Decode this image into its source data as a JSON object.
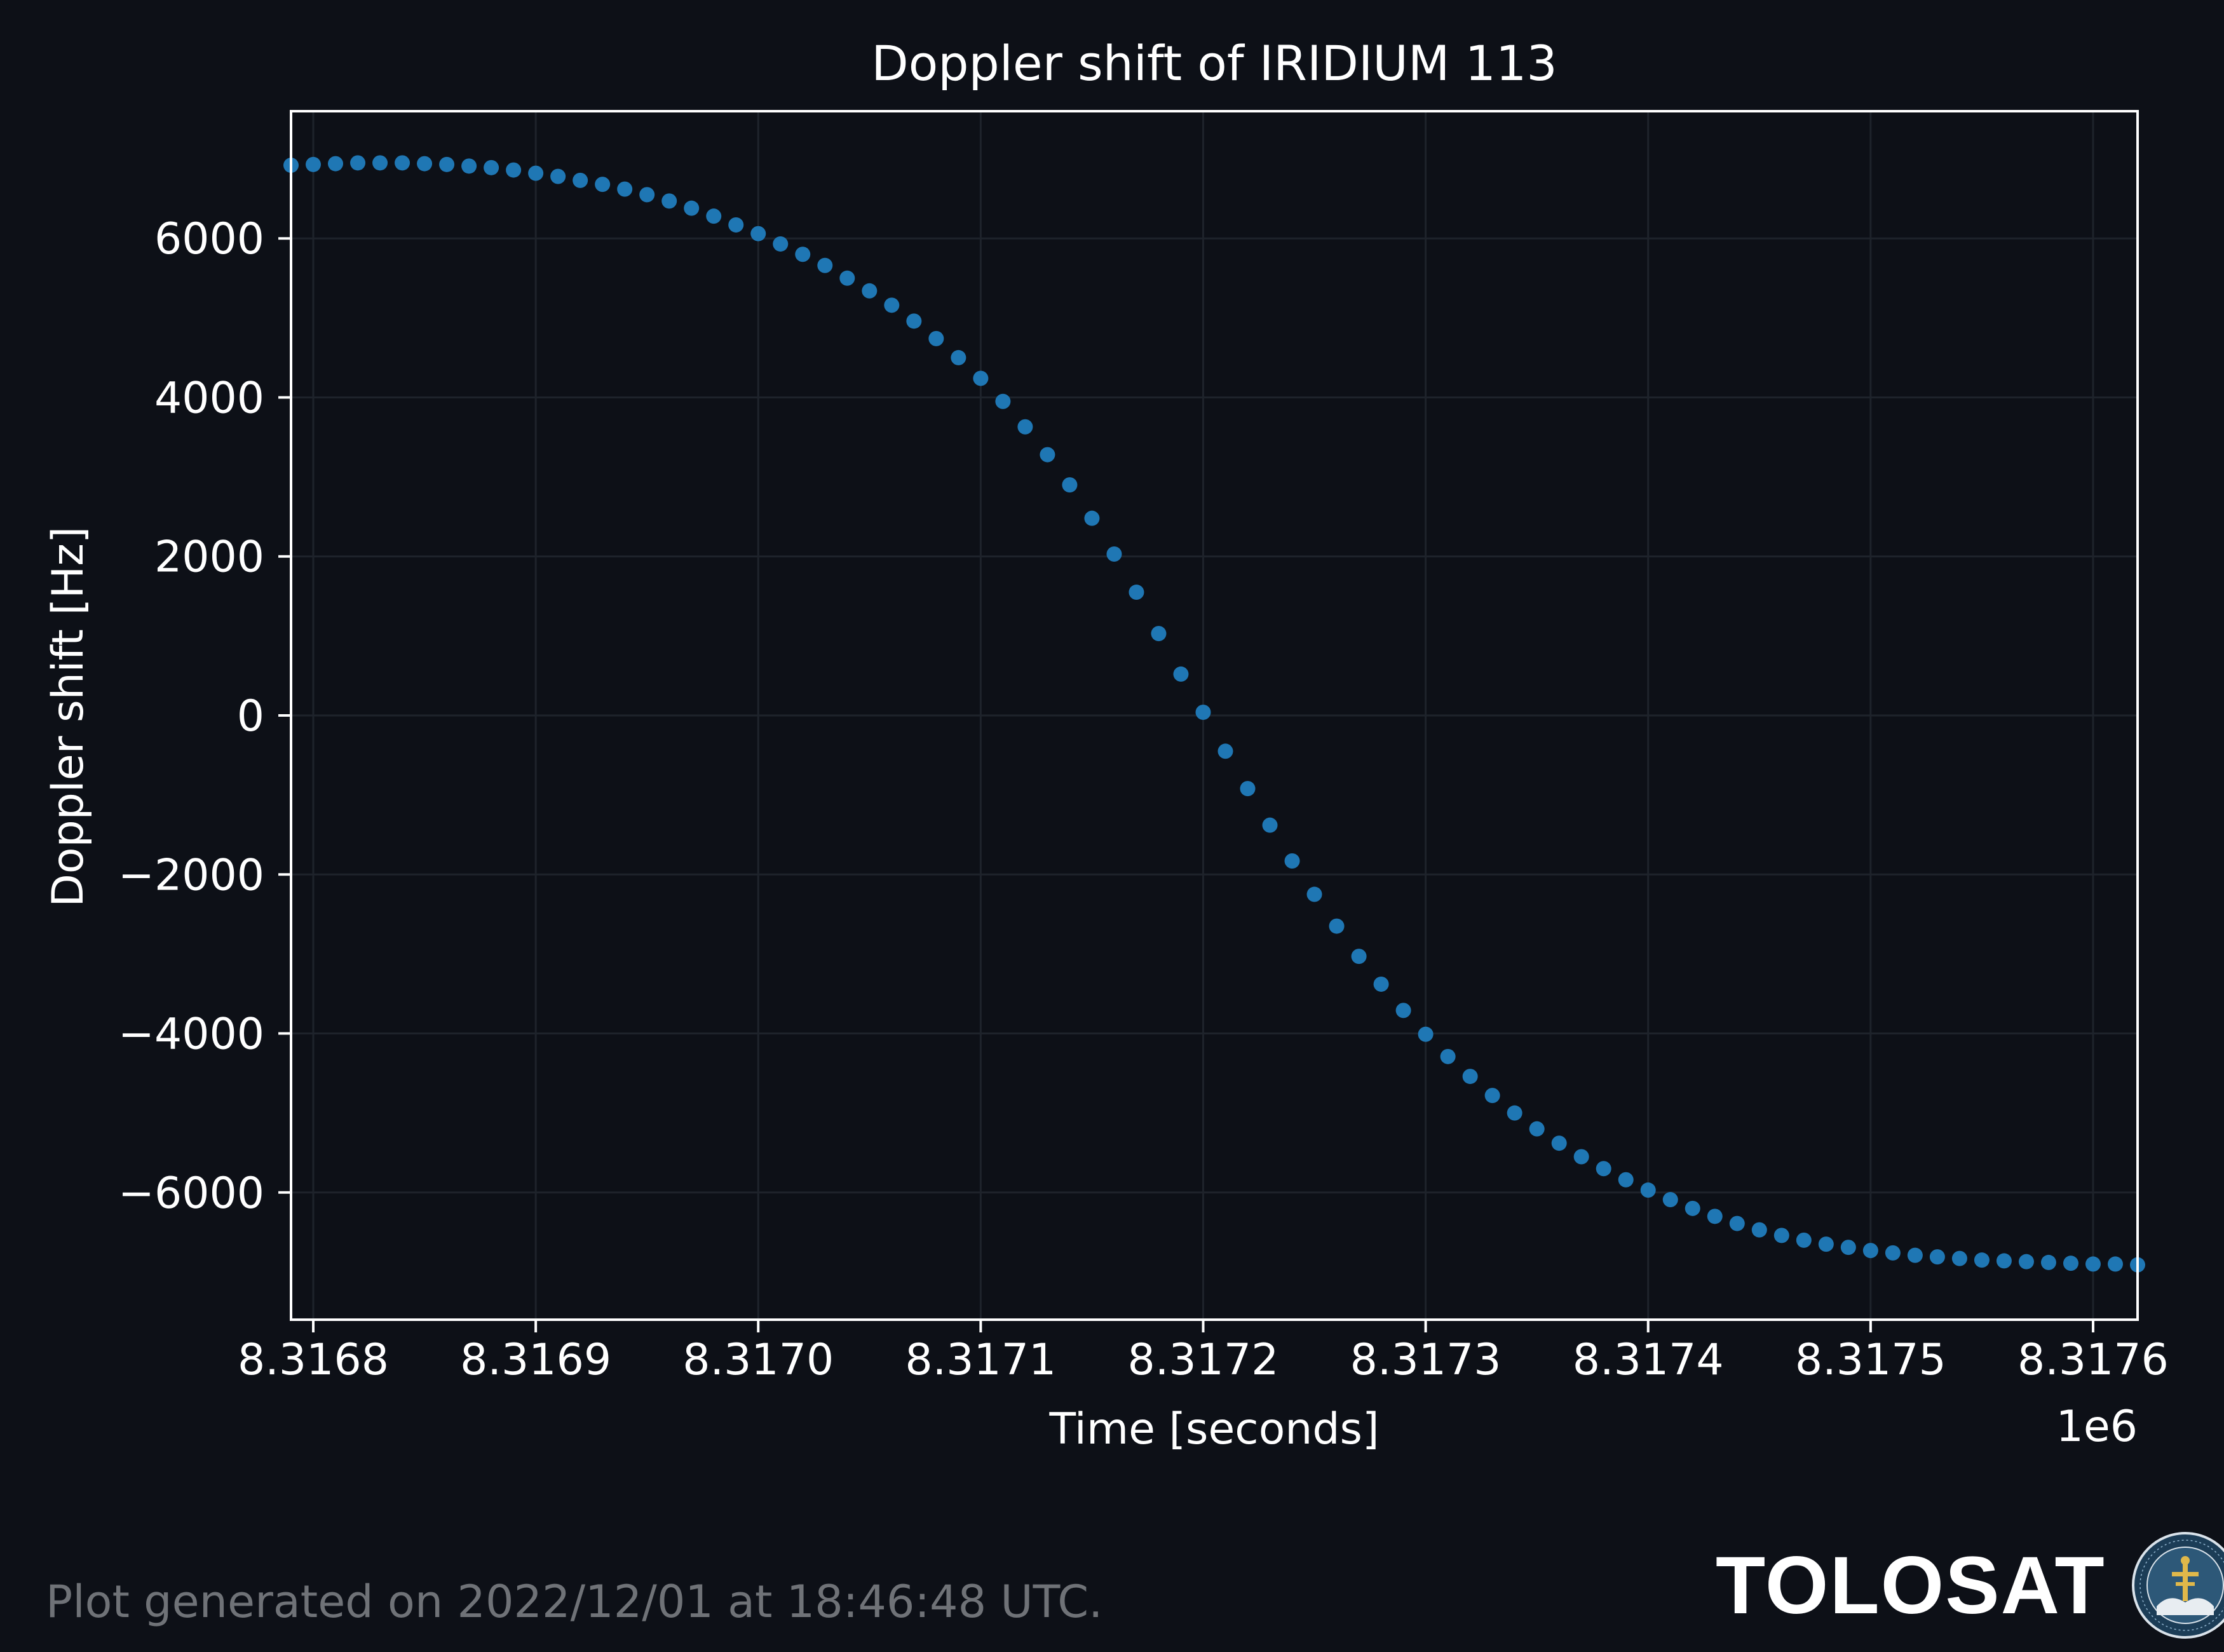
{
  "chart_data": {
    "type": "scatter",
    "title": "Doppler shift of IRIDIUM 113",
    "xlabel": "Time [seconds]",
    "ylabel": "Doppler shift [Hz]",
    "x_offset_label": "1e6",
    "xlim": [
      8.31679,
      8.31762
    ],
    "ylim": [
      -7600,
      7600
    ],
    "xticks": [
      8.3168,
      8.3169,
      8.317,
      8.3171,
      8.3172,
      8.3173,
      8.3174,
      8.3175,
      8.3176
    ],
    "xtick_labels": [
      "8.3168",
      "8.3169",
      "8.3170",
      "8.3171",
      "8.3172",
      "8.3173",
      "8.3174",
      "8.3175",
      "8.3176"
    ],
    "yticks": [
      -6000,
      -4000,
      -2000,
      0,
      2000,
      4000,
      6000
    ],
    "ytick_labels": [
      "−6000",
      "−4000",
      "−2000",
      "0",
      "2000",
      "4000",
      "6000"
    ],
    "grid": true,
    "series": [
      {
        "color": "#1f77b4",
        "x_start": 8.31679,
        "x_step": 1e-05,
        "y": [
          6920,
          6930,
          6940,
          6950,
          6950,
          6950,
          6940,
          6930,
          6910,
          6890,
          6860,
          6820,
          6780,
          6730,
          6680,
          6620,
          6550,
          6470,
          6380,
          6280,
          6170,
          6060,
          5930,
          5800,
          5660,
          5500,
          5340,
          5160,
          4960,
          4740,
          4500,
          4240,
          3950,
          3630,
          3280,
          2900,
          2480,
          2030,
          1550,
          1030,
          520,
          40,
          -450,
          -920,
          -1380,
          -1830,
          -2250,
          -2650,
          -3030,
          -3380,
          -3710,
          -4010,
          -4290,
          -4540,
          -4780,
          -5000,
          -5200,
          -5380,
          -5550,
          -5700,
          -5840,
          -5970,
          -6090,
          -6200,
          -6300,
          -6390,
          -6470,
          -6540,
          -6600,
          -6650,
          -6690,
          -6730,
          -6760,
          -6790,
          -6810,
          -6830,
          -6850,
          -6860,
          -6870,
          -6880,
          -6890,
          -6900,
          -6900,
          -6910
        ]
      }
    ]
  },
  "footer": {
    "note": "Plot generated on 2022/12/01 at 18:46:48 UTC.",
    "brand": "TOLOSAT",
    "seal_text": "ASTRE·CC·SUPAERO · TOLOSAT"
  }
}
